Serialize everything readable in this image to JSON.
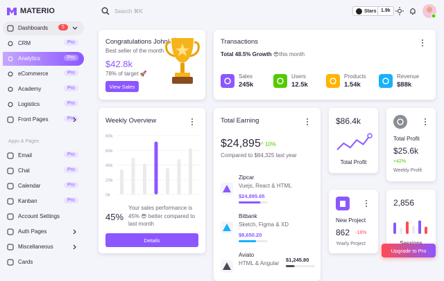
{
  "brand": "MATERIO",
  "sidebar": {
    "items": [
      {
        "label": "Dashboards",
        "badge": "5",
        "level": 0,
        "submenu": true,
        "state": "open"
      },
      {
        "label": "CRM",
        "badge": "Pro",
        "level": 1
      },
      {
        "label": "Analytics",
        "badge": "Pro",
        "level": 1,
        "state": "active"
      },
      {
        "label": "eCommerce",
        "badge": "Pro",
        "level": 1
      },
      {
        "label": "Academy",
        "badge": "Pro",
        "level": 1
      },
      {
        "label": "Logistics",
        "badge": "Pro",
        "level": 1
      },
      {
        "label": "Front Pages",
        "badge": "Pro",
        "level": 0,
        "submenu": true
      }
    ],
    "section": "Apps & Pages",
    "apps": [
      {
        "label": "Email",
        "badge": "Pro",
        "level": 0
      },
      {
        "label": "Chat",
        "badge": "Pro",
        "level": 0
      },
      {
        "label": "Calendar",
        "badge": "Pro",
        "level": 0
      },
      {
        "label": "Kanban",
        "badge": "Pro",
        "level": 0
      },
      {
        "label": "Account Settings",
        "level": 0
      },
      {
        "label": "Auth Pages",
        "level": 0,
        "submenu": true
      },
      {
        "label": "Miscellaneous",
        "level": 0,
        "submenu": true
      },
      {
        "label": "Cards",
        "level": 0
      }
    ]
  },
  "topbar": {
    "search": "Search ⌘K",
    "stars": "Stars",
    "star_count": "1.9k"
  },
  "congrats": {
    "title": "Congratulations John! 🎉",
    "subtitle": "Best seller of the month",
    "amount": "$42.8k",
    "target": "78% of target 🚀",
    "button": "View Sales"
  },
  "transactions": {
    "title": "Transactions",
    "growth": "Total 48.5% Growth",
    "period": "😎this month",
    "stats": [
      {
        "label": "Sales",
        "value": "245k",
        "color": "#8c57ff"
      },
      {
        "label": "Users",
        "value": "12.5k",
        "color": "#56ca00"
      },
      {
        "label": "Products",
        "value": "1.54k",
        "color": "#ffb400"
      },
      {
        "label": "Revenue",
        "value": "$88k",
        "color": "#16b1ff"
      }
    ]
  },
  "weekly": {
    "title": "Weekly Overview",
    "chart": {
      "type": "bar",
      "ylim": [
        0,
        80
      ],
      "yticks": [
        {
          "value": 0,
          "label": "0k"
        },
        {
          "value": 20,
          "label": "20k"
        },
        {
          "value": 40,
          "label": "40k"
        },
        {
          "value": 60,
          "label": "60k"
        },
        {
          "value": 80,
          "label": "80k"
        }
      ],
      "values": [
        34,
        50,
        42,
        72,
        36,
        48,
        63
      ],
      "colors": [
        "#ebebed",
        "#ebebed",
        "#ebebed",
        "#8c57ff",
        "#ebebed",
        "#ebebed",
        "#ebebed"
      ],
      "grid": true
    },
    "percent": "45%",
    "text": "Your sales performance is 45% 😎 better compared to last month",
    "button": "Details"
  },
  "earning": {
    "title": "Total Earning",
    "amount": "$24,895",
    "change": "10%",
    "compare": "Compared to $84,325 last year",
    "items": [
      {
        "name": "Zipcar",
        "desc": "Vuejs, React & HTML",
        "amount": "$24,895.65",
        "progress": 75,
        "color": "#8c57ff"
      },
      {
        "name": "Bitbank",
        "desc": "Sketch, Figma & XD",
        "amount": "$8,650.20",
        "progress": 60,
        "color": "#16b1ff"
      },
      {
        "name": "Aviato",
        "desc": "HTML & Angular",
        "amount": "$1,245.80",
        "progress": 30,
        "color": "#4b4b55"
      }
    ]
  },
  "profit_line": {
    "amount": "$86.4k",
    "label": "Total Profit",
    "chart": {
      "type": "line",
      "ylim": [
        0,
        18
      ],
      "values": [
        3,
        9,
        5,
        12,
        8,
        16
      ],
      "color": "#8c57ff"
    }
  },
  "profit": {
    "title": "Total Profit",
    "amount": "$25.6k",
    "change": "+42%",
    "caption": "Weekly Profit"
  },
  "project": {
    "title": "New Project",
    "amount": "862",
    "change": "-18%",
    "caption": "Yearly Project"
  },
  "sessions": {
    "amount": "2,856",
    "label": "Sessions",
    "chart": {
      "type": "bar",
      "ylim": [
        0,
        100
      ],
      "values": [
        55,
        30,
        60,
        40,
        65,
        35
      ],
      "colors": [
        "#8c57ff",
        "#ebebed",
        "#ff4c51",
        "#ebebed",
        "#8c57ff",
        "#ff4c51"
      ]
    }
  },
  "upgrade": "Upgrade to Pro"
}
